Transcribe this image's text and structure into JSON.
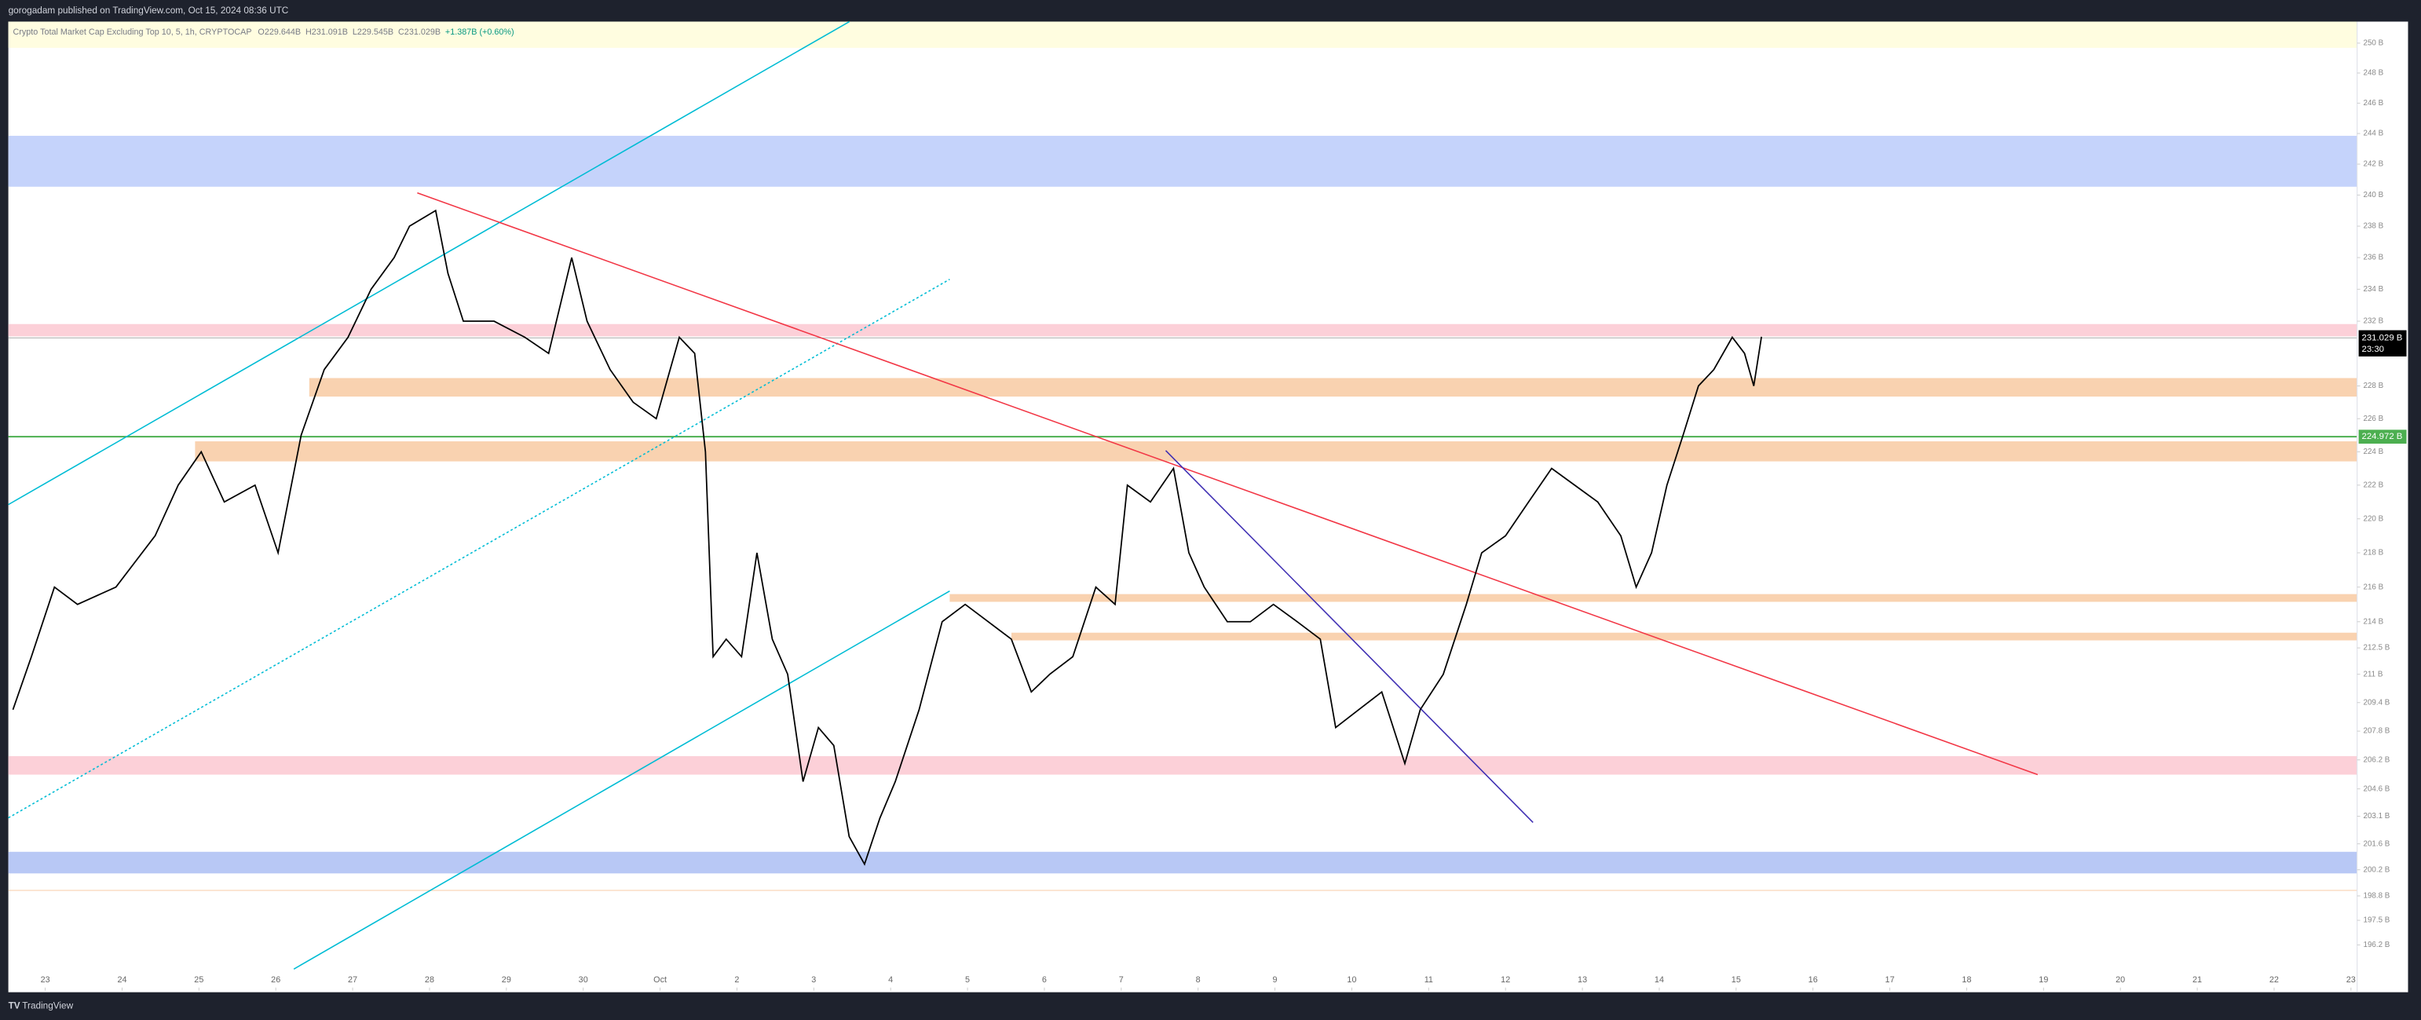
{
  "header": {
    "title": "gorogadam published on TradingView.com, Oct 15, 2024 08:36 UTC"
  },
  "footer": {
    "brand": "TradingView"
  },
  "chart_data": {
    "type": "line",
    "title": "Crypto Total Market Cap Excluding Top 10, 5, 1h, CRYPTOCAP",
    "ohlc": [
      "O229.644B",
      "H231.091B",
      "L229.545B",
      "C231.029B",
      "+1.387B (+0.60%)"
    ],
    "price_tags": [
      {
        "label": "231.029 B",
        "sub": "23:30",
        "color": "#000000"
      },
      {
        "label": "224.972 B",
        "color": "#4caf50"
      }
    ],
    "log_scale": true,
    "series": [
      {
        "name": "CRYPTOCAP",
        "color": "#000000",
        "x": [
          -0.42,
          -0.18,
          0.12,
          0.42,
          0.92,
          1.43,
          1.73,
          2.03,
          2.33,
          2.73,
          3.03,
          3.33,
          3.63,
          3.94,
          4.24,
          4.54,
          4.74,
          5.08,
          5.24,
          5.44,
          5.84,
          6.24,
          6.55,
          6.85,
          7.05,
          7.35,
          7.65,
          7.95,
          8.25,
          8.45,
          8.59,
          8.69,
          8.86,
          9.06,
          9.26,
          9.46,
          9.66,
          9.86,
          10.06,
          10.26,
          10.46,
          10.66,
          10.86,
          11.06,
          11.37,
          11.67,
          11.97,
          12.27,
          12.57,
          12.83,
          13.07,
          13.37,
          13.67,
          13.92,
          14.08,
          14.38,
          14.68,
          14.88,
          15.08,
          15.38,
          15.68,
          15.98,
          16.29,
          16.59,
          16.79,
          17.09,
          17.39,
          17.69,
          17.89,
          18.19,
          18.49,
          18.69,
          19.0,
          19.3,
          19.6,
          19.9,
          20.2,
          20.5,
          20.7,
          20.9,
          21.1,
          21.31,
          21.51,
          21.71,
          21.95,
          22.11,
          22.23,
          22.33
        ],
        "values": [
          209,
          212,
          216,
          215,
          216,
          219,
          222,
          224,
          221,
          222,
          218,
          225,
          229,
          231,
          234,
          236,
          238,
          239,
          235,
          232,
          232,
          231,
          230,
          236,
          232,
          229,
          227,
          226,
          231,
          230,
          224,
          212,
          213,
          212,
          218,
          213,
          211,
          205,
          208,
          207,
          202,
          200.5,
          203,
          205,
          209,
          214,
          215,
          214,
          213,
          210,
          211,
          212,
          216,
          215,
          222,
          221,
          223,
          218,
          216,
          214,
          214,
          215,
          214,
          213,
          208,
          209,
          210,
          206,
          209,
          211,
          215,
          218,
          219,
          221,
          223,
          222,
          221,
          219,
          216,
          218,
          222,
          225,
          228,
          229,
          231,
          230,
          228,
          231.029
        ]
      }
    ],
    "xlim": [
      -0.48,
      30.08
    ],
    "xticks": [
      {
        "value": 0,
        "label": "23"
      },
      {
        "value": 1,
        "label": "24"
      },
      {
        "value": 2,
        "label": "25"
      },
      {
        "value": 3,
        "label": "26"
      },
      {
        "value": 4,
        "label": "27"
      },
      {
        "value": 5,
        "label": "28"
      },
      {
        "value": 6,
        "label": "29"
      },
      {
        "value": 7,
        "label": "30"
      },
      {
        "value": 8,
        "label": "Oct"
      },
      {
        "value": 9,
        "label": "2"
      },
      {
        "value": 10,
        "label": "3"
      },
      {
        "value": 11,
        "label": "4"
      },
      {
        "value": 12,
        "label": "5"
      },
      {
        "value": 13,
        "label": "6"
      },
      {
        "value": 14,
        "label": "7"
      },
      {
        "value": 15,
        "label": "8"
      },
      {
        "value": 16,
        "label": "9"
      },
      {
        "value": 17,
        "label": "10"
      },
      {
        "value": 18,
        "label": "11"
      },
      {
        "value": 19,
        "label": "12"
      },
      {
        "value": 20,
        "label": "13"
      },
      {
        "value": 21,
        "label": "14"
      },
      {
        "value": 22,
        "label": "15"
      },
      {
        "value": 23,
        "label": "16"
      },
      {
        "value": 24,
        "label": "17"
      },
      {
        "value": 25,
        "label": "18"
      },
      {
        "value": 26,
        "label": "19"
      },
      {
        "value": 27,
        "label": "20"
      },
      {
        "value": 28,
        "label": "21"
      },
      {
        "value": 29,
        "label": "22"
      },
      {
        "value": 30,
        "label": "23"
      }
    ],
    "ylim": [
      193.8,
      251.45
    ],
    "yticks": [
      {
        "value": 250,
        "label": "250 B"
      },
      {
        "value": 248,
        "label": "248 B"
      },
      {
        "value": 246,
        "label": "246 B"
      },
      {
        "value": 244,
        "label": "244 B"
      },
      {
        "value": 242,
        "label": "242 B"
      },
      {
        "value": 240,
        "label": "240 B"
      },
      {
        "value": 238,
        "label": "238 B"
      },
      {
        "value": 236,
        "label": "236 B"
      },
      {
        "value": 234,
        "label": "234 B"
      },
      {
        "value": 232,
        "label": "232 B"
      },
      {
        "value": 228,
        "label": "228 B"
      },
      {
        "value": 226,
        "label": "226 B"
      },
      {
        "value": 224,
        "label": "224 B"
      },
      {
        "value": 222,
        "label": "222 B"
      },
      {
        "value": 220,
        "label": "220 B"
      },
      {
        "value": 218,
        "label": "218 B"
      },
      {
        "value": 216,
        "label": "216 B"
      },
      {
        "value": 214,
        "label": "214 B"
      },
      {
        "value": 212.5,
        "label": "212.5 B"
      },
      {
        "value": 211,
        "label": "211 B"
      },
      {
        "value": 209.4,
        "label": "209.4 B"
      },
      {
        "value": 207.8,
        "label": "207.8 B"
      },
      {
        "value": 206.2,
        "label": "206.2 B"
      },
      {
        "value": 204.6,
        "label": "204.6 B"
      },
      {
        "value": 203.1,
        "label": "203.1 B"
      },
      {
        "value": 201.6,
        "label": "201.6 B"
      },
      {
        "value": 200.2,
        "label": "200.2 B"
      },
      {
        "value": 198.8,
        "label": "198.8 B"
      },
      {
        "value": 197.5,
        "label": "197.5 B"
      },
      {
        "value": 196.2,
        "label": "196.2 B"
      }
    ]
  }
}
